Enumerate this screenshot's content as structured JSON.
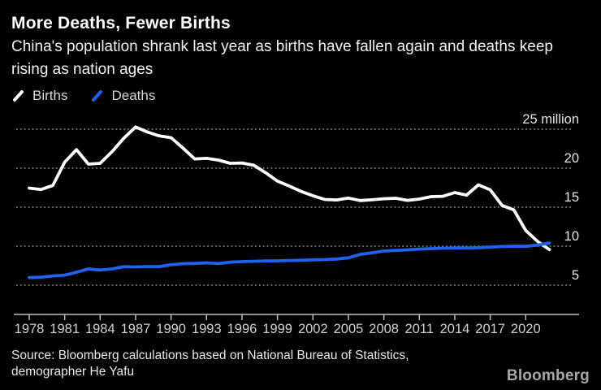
{
  "header": {
    "title": "More Deaths, Fewer Births",
    "subtitle": "China's population shrank last year as births have fallen again and deaths keep rising as nation ages"
  },
  "legend": {
    "births_label": "Births",
    "deaths_label": "Deaths"
  },
  "colors": {
    "background": "#000000",
    "births_line": "#ffffff",
    "deaths_line": "#1e63f0",
    "gridline": "#8b8b8b",
    "axis": "#bdbdbd",
    "x_tick_label": "#d2d2d2",
    "y_tick_label": "#e6e6e6"
  },
  "chart_data": {
    "type": "line",
    "title": "More Deaths, Fewer Births",
    "unit": "million people per year",
    "x": [
      1978,
      1979,
      1980,
      1981,
      1982,
      1983,
      1984,
      1985,
      1986,
      1987,
      1988,
      1989,
      1990,
      1991,
      1992,
      1993,
      1994,
      1995,
      1996,
      1997,
      1998,
      1999,
      2000,
      2001,
      2002,
      2003,
      2004,
      2005,
      2006,
      2007,
      2008,
      2009,
      2010,
      2011,
      2012,
      2013,
      2014,
      2015,
      2016,
      2017,
      2018,
      2019,
      2020,
      2021,
      2022
    ],
    "series": [
      {
        "name": "Births",
        "color": "#ffffff",
        "values": [
          17.45,
          17.27,
          17.79,
          20.78,
          22.38,
          20.52,
          20.63,
          22.11,
          23.84,
          25.29,
          24.64,
          24.14,
          23.91,
          22.58,
          21.19,
          21.26,
          21.04,
          20.63,
          20.67,
          20.38,
          19.42,
          18.34,
          17.71,
          17.02,
          16.47,
          15.99,
          15.93,
          16.17,
          15.85,
          15.95,
          16.08,
          16.15,
          15.88,
          16.04,
          16.35,
          16.4,
          16.87,
          16.55,
          17.86,
          17.23,
          15.23,
          14.65,
          12.02,
          10.62,
          9.56
        ]
      },
      {
        "name": "Deaths",
        "color": "#1e63f0",
        "values": [
          5.97,
          6.02,
          6.19,
          6.29,
          6.66,
          7.08,
          6.95,
          7.08,
          7.38,
          7.34,
          7.39,
          7.38,
          7.63,
          7.76,
          7.79,
          7.86,
          7.77,
          7.96,
          8.02,
          8.06,
          8.1,
          8.12,
          8.17,
          8.2,
          8.25,
          8.28,
          8.35,
          8.51,
          8.95,
          9.16,
          9.38,
          9.46,
          9.53,
          9.62,
          9.69,
          9.74,
          9.77,
          9.78,
          9.81,
          9.89,
          9.96,
          10.0,
          9.98,
          10.14,
          10.41
        ]
      }
    ],
    "x_tick_labels": [
      "1978",
      "1981",
      "1984",
      "1987",
      "1990",
      "1993",
      "1996",
      "1999",
      "2002",
      "2005",
      "2008",
      "2011",
      "2014",
      "2017",
      "2020"
    ],
    "y_ticks": [
      {
        "value": 25,
        "label": "25 million"
      },
      {
        "value": 20,
        "label": "20"
      },
      {
        "value": 15,
        "label": "15"
      },
      {
        "value": 10,
        "label": "10"
      },
      {
        "value": 5,
        "label": "5"
      }
    ],
    "xlim": [
      1978,
      2022
    ],
    "ylim": [
      1,
      27
    ],
    "grid": "dotted-horizontal",
    "legend_position": "top-left"
  },
  "footer": {
    "source": "Source: Bloomberg calculations based on National Bureau of Statistics, demographer He Yafu",
    "logo": "Bloomberg"
  }
}
